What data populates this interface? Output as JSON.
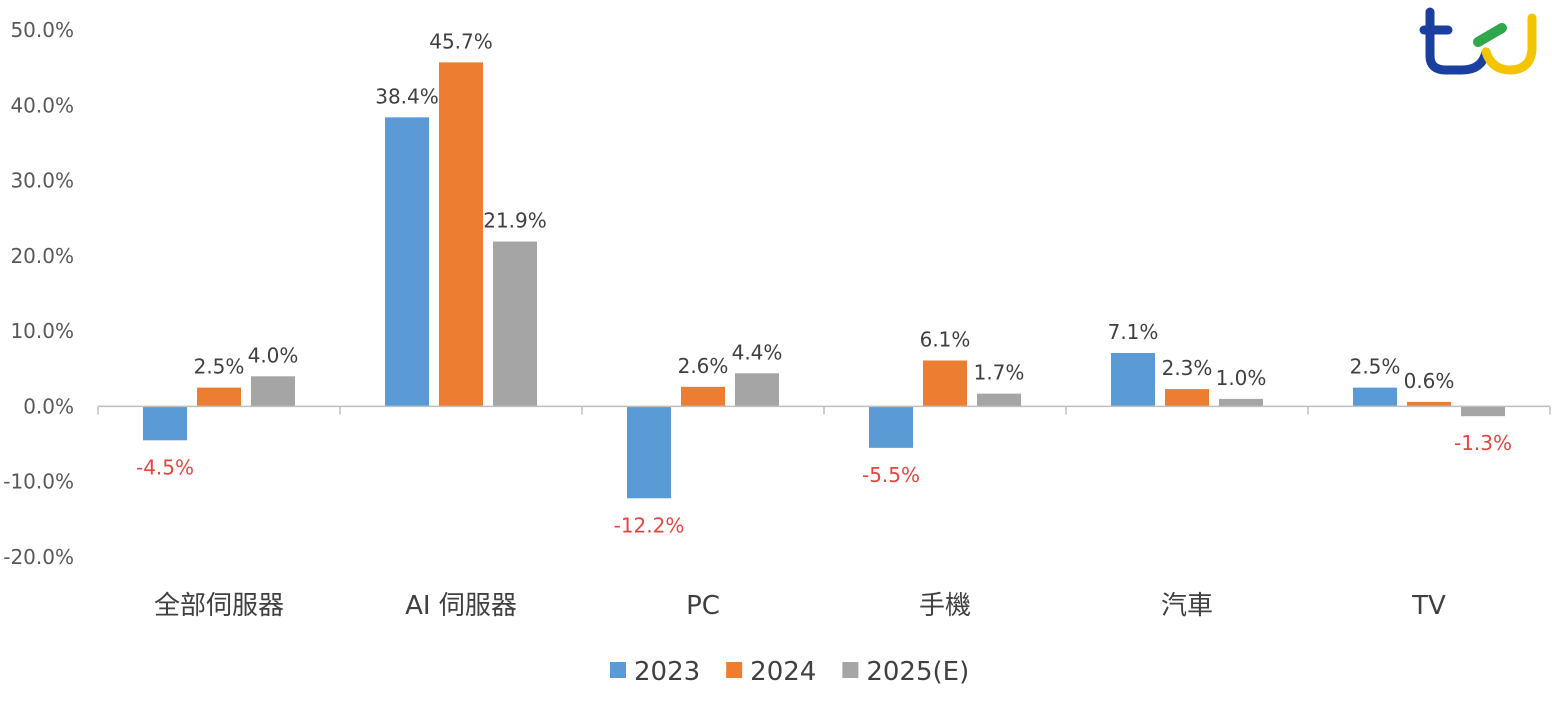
{
  "chart_data": {
    "type": "bar",
    "title": "",
    "xlabel": "",
    "ylabel": "",
    "ylim": [
      -0.2,
      0.5
    ],
    "yticks": [
      0.5,
      0.4,
      0.3,
      0.2,
      0.1,
      0.0,
      -0.1,
      -0.2
    ],
    "ytick_labels": [
      "50.0%",
      "40.0%",
      "30.0%",
      "20.0%",
      "10.0%",
      "0.0%",
      "-10.0%",
      "-20.0%"
    ],
    "categories": [
      "全部伺服器",
      "AI 伺服器",
      "PC",
      "手機",
      "汽車",
      "TV"
    ],
    "series": [
      {
        "name": "2023",
        "color": "#5b9bd5",
        "values": [
          -0.045,
          0.384,
          -0.122,
          -0.055,
          0.071,
          0.025
        ],
        "labels": [
          "-4.5%",
          "38.4%",
          "-12.2%",
          "-5.5%",
          "7.1%",
          "2.5%"
        ]
      },
      {
        "name": "2024",
        "color": "#ed7d31",
        "values": [
          0.025,
          0.457,
          0.026,
          0.061,
          0.023,
          0.006
        ],
        "labels": [
          "2.5%",
          "45.7%",
          "2.6%",
          "6.1%",
          "2.3%",
          "0.6%"
        ]
      },
      {
        "name": "2025(E)",
        "color": "#a5a5a5",
        "values": [
          0.04,
          0.219,
          0.044,
          0.017,
          0.01,
          -0.013
        ],
        "labels": [
          "4.0%",
          "21.9%",
          "4.4%",
          "1.7%",
          "1.0%",
          "-1.3%"
        ]
      }
    ],
    "negative_label_color": "#e8453c",
    "legend_position": "bottom",
    "grid": false
  },
  "logo": {
    "name": "tej",
    "colors": [
      "#1a3f9e",
      "#f2c500",
      "#2ea84a"
    ]
  }
}
